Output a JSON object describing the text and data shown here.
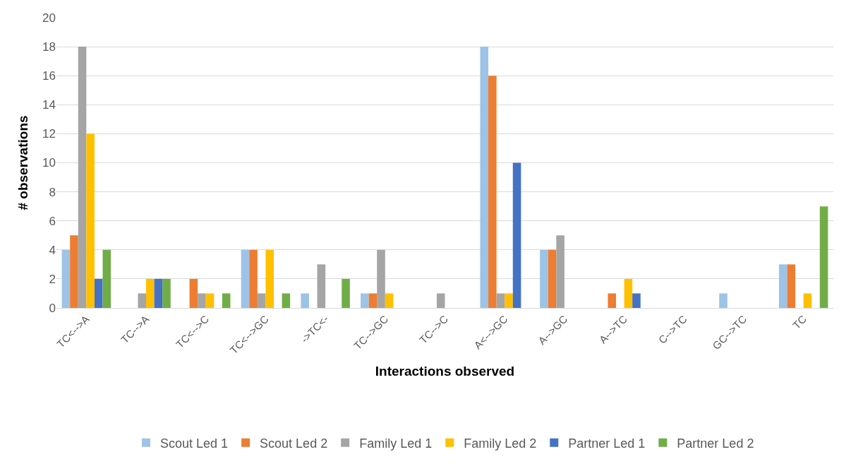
{
  "chart_data": {
    "type": "bar",
    "xlabel": "Interactions observed",
    "ylabel": "# observations",
    "categories": [
      "TC<-->A",
      "TC-->A",
      "TC<-->C",
      "TC<-->GC",
      "->TC<-",
      "TC-->GC",
      "TC-->C",
      "A<-->GC",
      "A-->GC",
      "A-->TC",
      "C-->TC",
      "GC-->TC",
      "TC"
    ],
    "series": [
      {
        "name": "Scout Led 1",
        "color": "#9dc3e6",
        "values": [
          4,
          0,
          0,
          4,
          1,
          1,
          0,
          18,
          4,
          0,
          0,
          1,
          3
        ]
      },
      {
        "name": "Scout Led 2",
        "color": "#ed7d31",
        "values": [
          5,
          0,
          2,
          4,
          0,
          1,
          0,
          16,
          4,
          1,
          0,
          0,
          3
        ]
      },
      {
        "name": "Family Led 1",
        "color": "#a5a5a5",
        "values": [
          18,
          1,
          1,
          1,
          3,
          4,
          1,
          1,
          5,
          0,
          0,
          0,
          0
        ]
      },
      {
        "name": "Family Led 2",
        "color": "#ffc000",
        "values": [
          12,
          2,
          1,
          4,
          0,
          1,
          0,
          1,
          0,
          2,
          0,
          0,
          1
        ]
      },
      {
        "name": "Partner Led 1",
        "color": "#4472c4",
        "values": [
          2,
          2,
          0,
          0,
          0,
          0,
          0,
          10,
          0,
          1,
          0,
          0,
          0
        ]
      },
      {
        "name": "Partner Led 2",
        "color": "#70ad47",
        "values": [
          4,
          2,
          1,
          1,
          2,
          0,
          0,
          0,
          0,
          0,
          0,
          0,
          7
        ]
      }
    ],
    "ylim": [
      0,
      20
    ],
    "yticks": [
      0,
      2,
      4,
      6,
      8,
      10,
      12,
      14,
      16,
      18,
      20
    ],
    "grid": "y",
    "legend": "bottom"
  }
}
